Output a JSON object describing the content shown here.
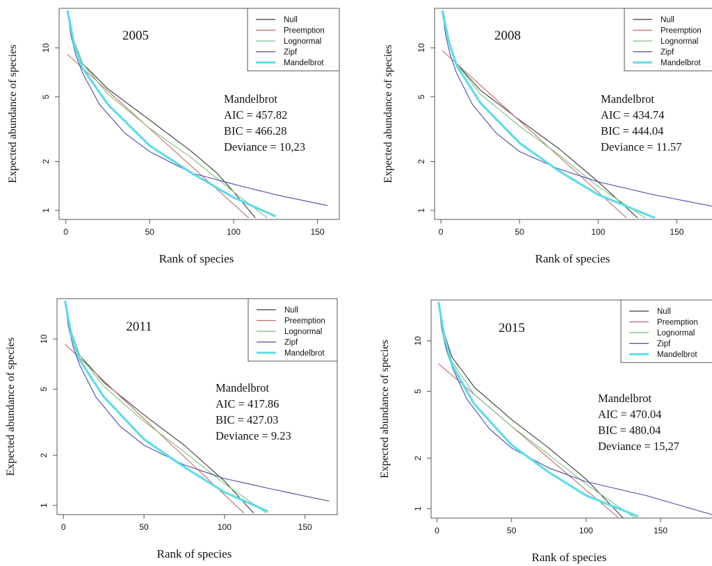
{
  "colors": {
    "null": "#3a3a3a",
    "preemption": "#c46a6a",
    "lognormal": "#79c279",
    "zipf": "#4a4aa8",
    "mandelbrot": "#5ddde8",
    "axis": "#555555",
    "text": "#111111"
  },
  "chart_data": [
    {
      "type": "line",
      "title": "2005",
      "xlabel": "Rank of species",
      "ylabel": "Expected abundance of species",
      "y_scale": "log",
      "xlim": [
        -4,
        163
      ],
      "ylim": [
        0.88,
        17.5
      ],
      "x_ticks": [
        0,
        50,
        100,
        150
      ],
      "x_tick_labels": [
        "0",
        "50",
        "100",
        "150"
      ],
      "y_ticks": [
        1,
        2,
        5,
        10
      ],
      "y_tick_labels": [
        "1",
        "2",
        "5",
        "10"
      ],
      "legend": [
        "Null",
        "Preemption",
        "Lognormal",
        "Zipf",
        "Mandelbrot"
      ],
      "legend_position": "top-right",
      "annotation": [
        "Mandelbrot",
        "AIC = 457.82",
        "BIC = 466.28",
        "Deviance = 10,23"
      ],
      "series": [
        {
          "name": "Null",
          "color_key": "null",
          "x": [
            1,
            5,
            10,
            25,
            50,
            75,
            90,
            100,
            113
          ],
          "y": [
            16,
            11,
            8,
            5.6,
            3.6,
            2.3,
            1.7,
            1.3,
            0.9
          ]
        },
        {
          "name": "Preemption",
          "color_key": "preemption",
          "x": [
            1,
            109
          ],
          "y": [
            9.1,
            0.9
          ]
        },
        {
          "name": "Lognormal",
          "color_key": "lognormal",
          "x": [
            1,
            5,
            10,
            25,
            50,
            75,
            100,
            120
          ],
          "y": [
            17,
            11,
            8,
            5.2,
            3.2,
            2.1,
            1.3,
            0.9
          ]
        },
        {
          "name": "Zipf",
          "color_key": "zipf",
          "x": [
            1,
            3,
            6,
            10,
            20,
            35,
            50,
            75,
            100,
            125,
            156
          ],
          "y": [
            17,
            12,
            9,
            7,
            4.5,
            3,
            2.3,
            1.7,
            1.45,
            1.25,
            1.07
          ]
        },
        {
          "name": "Mandelbrot",
          "color_key": "mandelbrot",
          "x": [
            1,
            5,
            10,
            25,
            50,
            75,
            100,
            125
          ],
          "y": [
            17,
            10.5,
            7.5,
            4.5,
            2.5,
            1.7,
            1.2,
            0.92
          ]
        }
      ]
    },
    {
      "type": "line",
      "title": "2008",
      "xlabel": "Rank of species",
      "ylabel": "Expected abundance of species",
      "y_scale": "log",
      "xlim": [
        -4,
        175
      ],
      "ylim": [
        0.88,
        17.5
      ],
      "x_ticks": [
        0,
        50,
        100,
        150
      ],
      "x_tick_labels": [
        "0",
        "50",
        "100",
        "150"
      ],
      "y_ticks": [
        1,
        2,
        5,
        10
      ],
      "y_tick_labels": [
        "1",
        "2",
        "5",
        "10"
      ],
      "legend": [
        "Null",
        "Preemption",
        "Lognormal",
        "Zipf",
        "Mandelbrot"
      ],
      "legend_position": "top-right",
      "annotation": [
        "Mandelbrot",
        "AIC = 434.74",
        "BIC = 444.04",
        "Deviance =  11.57"
      ],
      "series": [
        {
          "name": "Null",
          "color_key": "null",
          "x": [
            1,
            5,
            10,
            25,
            50,
            75,
            100,
            125
          ],
          "y": [
            16,
            11,
            8,
            5.5,
            3.6,
            2.4,
            1.5,
            0.9
          ]
        },
        {
          "name": "Preemption",
          "color_key": "preemption",
          "x": [
            1,
            118
          ],
          "y": [
            9.6,
            0.9
          ]
        },
        {
          "name": "Lognormal",
          "color_key": "lognormal",
          "x": [
            1,
            5,
            10,
            25,
            50,
            75,
            100,
            130
          ],
          "y": [
            17,
            11,
            8,
            5.2,
            3.3,
            2.2,
            1.4,
            0.9
          ]
        },
        {
          "name": "Zipf",
          "color_key": "zipf",
          "x": [
            1,
            3,
            6,
            10,
            20,
            35,
            50,
            75,
            100,
            135,
            175
          ],
          "y": [
            17,
            12,
            9,
            7,
            4.5,
            3,
            2.3,
            1.8,
            1.5,
            1.25,
            1.05
          ]
        },
        {
          "name": "Mandelbrot",
          "color_key": "mandelbrot",
          "x": [
            1,
            5,
            10,
            25,
            50,
            75,
            100,
            136
          ],
          "y": [
            17,
            11,
            7.8,
            4.6,
            2.6,
            1.75,
            1.25,
            0.9
          ]
        }
      ]
    },
    {
      "type": "line",
      "title": "2011",
      "xlabel": "Rank of species",
      "ylabel": "Expected abundance of species",
      "y_scale": "log",
      "xlim": [
        -4,
        170
      ],
      "ylim": [
        0.88,
        17.5
      ],
      "x_ticks": [
        0,
        50,
        100,
        150
      ],
      "x_tick_labels": [
        "0",
        "50",
        "100",
        "150"
      ],
      "y_ticks": [
        1,
        2,
        5,
        10
      ],
      "y_tick_labels": [
        "1",
        "2",
        "5",
        "10"
      ],
      "legend": [
        "Null",
        "Preemption",
        "Lognormal",
        "Zipf",
        "Mandelbrot"
      ],
      "legend_position": "top-right",
      "annotation": [
        "Mandelbrot",
        "AIC = 417.86",
        "BIC = 427.03",
        "Deviance =  9.23"
      ],
      "series": [
        {
          "name": "Null",
          "color_key": "null",
          "x": [
            1,
            5,
            10,
            25,
            50,
            75,
            100,
            118
          ],
          "y": [
            16,
            11,
            8,
            5.5,
            3.5,
            2.3,
            1.4,
            0.9
          ]
        },
        {
          "name": "Preemption",
          "color_key": "preemption",
          "x": [
            1,
            112
          ],
          "y": [
            9.3,
            0.9
          ]
        },
        {
          "name": "Lognormal",
          "color_key": "lognormal",
          "x": [
            1,
            5,
            10,
            25,
            50,
            75,
            100,
            126
          ],
          "y": [
            17,
            11,
            8,
            5.2,
            3.2,
            2.1,
            1.35,
            0.9
          ]
        },
        {
          "name": "Zipf",
          "color_key": "zipf",
          "x": [
            1,
            3,
            6,
            10,
            20,
            35,
            50,
            75,
            100,
            130,
            165
          ],
          "y": [
            17,
            12,
            9,
            7,
            4.5,
            3,
            2.3,
            1.75,
            1.45,
            1.25,
            1.06
          ]
        },
        {
          "name": "Mandelbrot",
          "color_key": "mandelbrot",
          "x": [
            1,
            5,
            10,
            25,
            50,
            75,
            100,
            127
          ],
          "y": [
            17,
            10.5,
            7.5,
            4.5,
            2.5,
            1.7,
            1.2,
            0.92
          ]
        }
      ]
    },
    {
      "type": "line",
      "title": "2015",
      "xlabel": "Rank of species",
      "ylabel": "Expected abundance of species",
      "y_scale": "log",
      "xlim": [
        -4,
        185
      ],
      "ylim": [
        0.88,
        17.5
      ],
      "x_ticks": [
        0,
        50,
        100,
        150
      ],
      "x_tick_labels": [
        "0",
        "50",
        "100",
        "150"
      ],
      "y_ticks": [
        1,
        2,
        5,
        10
      ],
      "y_tick_labels": [
        "1",
        "2",
        "5",
        "10"
      ],
      "legend": [
        "Null",
        "Preemption",
        "Lognormal",
        "Zipf",
        "Mandelbrot"
      ],
      "legend_position": "top-right",
      "annotation": [
        "Mandelbrot",
        "AIC = 470.04",
        "BIC = 480.04",
        "Deviance = 15,27"
      ],
      "series": [
        {
          "name": "Null",
          "color_key": "null",
          "x": [
            1,
            5,
            10,
            25,
            50,
            75,
            100,
            125
          ],
          "y": [
            16,
            11,
            8,
            5.3,
            3.4,
            2.3,
            1.5,
            0.88
          ]
        },
        {
          "name": "Preemption",
          "color_key": "preemption",
          "x": [
            1,
            122
          ],
          "y": [
            7.3,
            0.88
          ]
        },
        {
          "name": "Lognormal",
          "color_key": "lognormal",
          "x": [
            1,
            5,
            10,
            25,
            50,
            75,
            100,
            133
          ],
          "y": [
            17,
            11,
            7.5,
            4.8,
            3.1,
            2.1,
            1.4,
            0.88
          ]
        },
        {
          "name": "Zipf",
          "color_key": "zipf",
          "x": [
            1,
            3,
            6,
            10,
            20,
            35,
            50,
            75,
            100,
            140,
            185
          ],
          "y": [
            17,
            12,
            9,
            7,
            4.5,
            3,
            2.3,
            1.75,
            1.45,
            1.2,
            0.92
          ]
        },
        {
          "name": "Mandelbrot",
          "color_key": "mandelbrot",
          "x": [
            1,
            5,
            10,
            25,
            50,
            75,
            100,
            135
          ],
          "y": [
            17,
            10.5,
            7.2,
            4.2,
            2.4,
            1.65,
            1.2,
            0.9
          ]
        }
      ]
    }
  ]
}
